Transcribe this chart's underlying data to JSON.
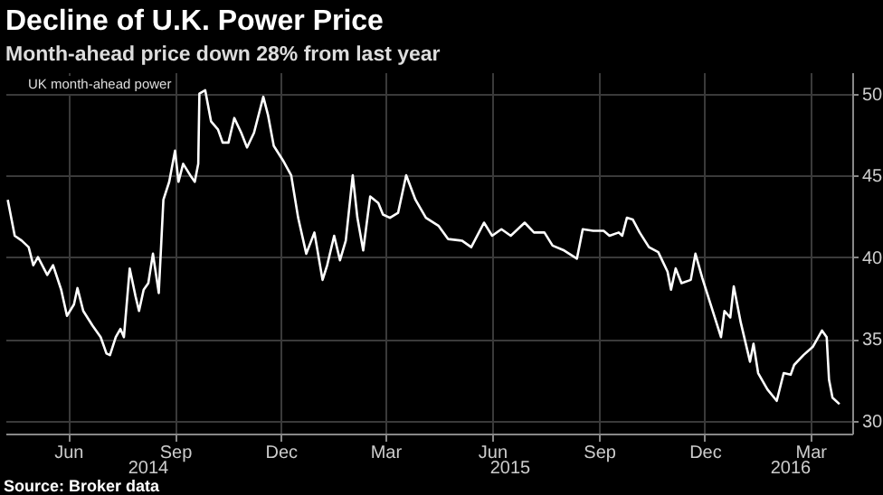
{
  "chart_data": {
    "type": "line",
    "title": "Decline of U.K. Power Price",
    "subtitle": "Month-ahead price down 28% from last year",
    "annotations": [
      "Source: Broker data",
      "2014",
      "2015",
      "2016"
    ],
    "series": [
      {
        "name": "UK month-ahead power",
        "color": "#ffffff",
        "x": [
          "2014-04-24",
          "2014-04-30",
          "2014-05-06",
          "2014-05-12",
          "2014-05-16",
          "2014-05-20",
          "2014-05-28",
          "2014-06-02",
          "2014-06-09",
          "2014-06-14",
          "2014-06-20",
          "2014-06-23",
          "2014-06-28",
          "2014-07-06",
          "2014-07-13",
          "2014-07-18",
          "2014-07-21",
          "2014-07-26",
          "2014-07-30",
          "2014-08-02",
          "2014-08-07",
          "2014-08-12",
          "2014-08-15",
          "2014-08-19",
          "2014-08-23",
          "2014-08-27",
          "2014-09-01",
          "2014-09-05",
          "2014-09-10",
          "2014-09-15",
          "2014-09-18",
          "2014-09-22",
          "2014-09-29",
          "2014-10-02",
          "2014-10-05",
          "2014-10-06",
          "2014-10-11",
          "2014-10-16",
          "2014-10-22",
          "2014-10-26",
          "2014-10-31",
          "2014-11-05",
          "2014-11-11",
          "2014-11-16",
          "2014-11-22",
          "2014-11-30",
          "2014-12-04",
          "2014-12-09",
          "2014-12-17",
          "2014-12-24",
          "2014-12-30",
          "2015-01-06",
          "2015-01-13",
          "2015-01-20",
          "2015-01-24",
          "2015-01-30",
          "2015-02-04",
          "2015-02-09",
          "2015-02-15",
          "2015-02-19",
          "2015-02-24",
          "2015-03-02",
          "2015-03-09",
          "2015-03-13",
          "2015-03-19",
          "2015-03-26",
          "2015-04-02",
          "2015-04-10",
          "2015-04-19",
          "2015-04-30",
          "2015-05-08",
          "2015-05-20",
          "2015-05-28",
          "2015-06-08",
          "2015-06-15",
          "2015-06-23",
          "2015-07-01",
          "2015-07-13",
          "2015-07-21",
          "2015-07-30",
          "2015-08-06",
          "2015-08-16",
          "2015-08-27",
          "2015-09-01",
          "2015-09-10",
          "2015-09-19",
          "2015-09-24",
          "2015-10-02",
          "2015-10-05",
          "2015-10-09",
          "2015-10-14",
          "2015-10-20",
          "2015-10-28",
          "2015-11-05",
          "2015-11-13",
          "2015-11-16",
          "2015-11-20",
          "2015-11-25",
          "2015-12-03",
          "2015-12-07",
          "2015-12-13",
          "2015-12-21",
          "2015-12-29",
          "2016-01-01",
          "2016-01-06",
          "2016-01-09",
          "2016-01-15",
          "2016-01-23",
          "2016-01-26",
          "2016-01-30",
          "2016-02-07",
          "2016-02-15",
          "2016-02-21",
          "2016-02-27",
          "2016-03-01",
          "2016-03-09",
          "2016-03-17",
          "2016-03-25",
          "2016-03-29",
          "2016-03-31",
          "2016-04-03",
          "2016-04-09"
        ],
        "values": [
          43.5,
          41.3,
          41.0,
          40.6,
          39.5,
          40.0,
          38.9,
          39.5,
          38.0,
          36.4,
          37.1,
          38.1,
          36.7,
          35.8,
          35.1,
          34.1,
          34.0,
          35.1,
          35.6,
          35.1,
          39.3,
          37.6,
          36.7,
          38.0,
          38.4,
          40.2,
          37.8,
          43.5,
          44.6,
          46.5,
          44.6,
          45.7,
          44.9,
          44.6,
          45.7,
          50.0,
          50.2,
          48.3,
          47.8,
          47.0,
          47.0,
          48.5,
          47.6,
          46.7,
          47.6,
          49.8,
          48.7,
          46.8,
          45.9,
          45.0,
          42.4,
          40.2,
          41.5,
          38.6,
          39.5,
          41.3,
          39.8,
          41.0,
          45.0,
          42.4,
          40.4,
          43.7,
          43.3,
          42.6,
          42.4,
          42.7,
          45.0,
          43.5,
          42.4,
          41.9,
          41.1,
          41.0,
          40.6,
          42.1,
          41.3,
          41.7,
          41.3,
          42.1,
          41.5,
          41.5,
          40.7,
          40.4,
          39.9,
          41.7,
          41.6,
          41.6,
          41.3,
          41.5,
          41.3,
          42.4,
          42.3,
          41.5,
          40.6,
          40.3,
          39.1,
          38.0,
          39.3,
          38.4,
          38.6,
          40.2,
          38.7,
          36.9,
          35.1,
          36.7,
          36.3,
          38.2,
          36.0,
          33.6,
          34.7,
          32.9,
          31.9,
          31.2,
          32.9,
          32.8,
          33.4,
          34.0,
          34.5,
          35.5,
          35.1,
          32.5,
          31.4,
          31.0
        ]
      }
    ],
    "xlim": [
      "2014-04-22",
      "2016-04-20"
    ],
    "xticks": [
      {
        "value": "2014-06-15",
        "label": "Jun"
      },
      {
        "value": "2014-09-15",
        "label": "Sep"
      },
      {
        "value": "2014-12-15",
        "label": "Dec"
      },
      {
        "value": "2015-03-15",
        "label": "Mar"
      },
      {
        "value": "2015-06-15",
        "label": "Jun"
      },
      {
        "value": "2015-09-15",
        "label": "Sep"
      },
      {
        "value": "2015-12-15",
        "label": "Dec"
      },
      {
        "value": "2016-03-15",
        "label": "Mar"
      }
    ],
    "ylim": [
      29.2,
      51.3
    ],
    "yticks": [
      30,
      35,
      40,
      45,
      50
    ],
    "grid": true,
    "legend": "top left",
    "line_style": "solid",
    "marker": "none"
  }
}
